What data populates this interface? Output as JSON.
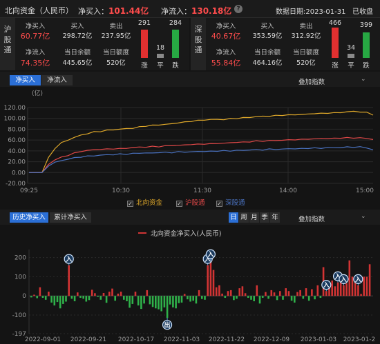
{
  "header": {
    "title": "北向资金（人民币）",
    "net_buy_label": "净买入：",
    "net_buy_value": "101.44亿",
    "net_inflow_label": "净流入：",
    "net_inflow_value": "130.18亿",
    "help": "?",
    "date_label": "数据日期:2023-01-31",
    "status": "已收盘"
  },
  "sh": {
    "tag": "沪股通",
    "net_buy_label": "净买入",
    "net_buy": "60.77亿",
    "buy_label": "买入",
    "buy": "298.72亿",
    "sell_label": "卖出",
    "sell": "237.95亿",
    "net_in_label": "净流入",
    "net_in": "74.35亿",
    "balance_label": "当日余额",
    "balance": "445.65亿",
    "quota_label": "当日额度",
    "quota": "520亿",
    "up": "291",
    "flat": "18",
    "down": "284",
    "up_label": "涨",
    "flat_label": "平",
    "down_label": "跌",
    "up_ratio": 0.49,
    "flat_ratio": 0.03,
    "down_ratio": 0.48
  },
  "sz": {
    "tag": "深股通",
    "net_buy_label": "净买入",
    "net_buy": "40.67亿",
    "buy_label": "买入",
    "buy": "353.59亿",
    "sell_label": "卖出",
    "sell": "312.92亿",
    "net_in_label": "净流入",
    "net_in": "55.84亿",
    "balance_label": "当日余额",
    "balance": "464.16亿",
    "quota_label": "当日额度",
    "quota": "520亿",
    "up": "466",
    "flat": "34",
    "down": "399",
    "up_label": "涨",
    "flat_label": "平",
    "down_label": "跌",
    "up_ratio": 0.52,
    "flat_ratio": 0.04,
    "down_ratio": 0.44
  },
  "intraday": {
    "tab_net_buy": "净买入",
    "tab_net_inflow": "净流入",
    "overlay": "叠加指数",
    "legend": [
      "北向资金",
      "沪股通",
      "深股通"
    ]
  },
  "history": {
    "tab_hist": "历史净买入",
    "tab_cum": "累计净买入",
    "periods": [
      "日",
      "周",
      "月",
      "季",
      "年"
    ],
    "overlay": "叠加指数",
    "legend": "北向资金净买入(人民币)"
  },
  "chart_data": [
    {
      "type": "line",
      "unit_label": "(亿)",
      "ylim": [
        -20,
        120
      ],
      "y_ticks": [
        "120.00",
        "100.00",
        "80.00",
        "60.00",
        "40.00",
        "20.00",
        "0.00",
        "-20.00"
      ],
      "x_ticks": [
        "09:25",
        "10:30",
        "11:30",
        "14:00",
        "15:00"
      ],
      "grid": true,
      "series": [
        {
          "name": "北向资金",
          "color": "#e0a92a",
          "values": [
            0,
            0,
            0,
            28,
            45,
            55,
            60,
            65,
            69,
            72,
            75,
            76,
            78,
            79,
            80,
            81,
            82,
            84,
            86,
            87,
            88,
            89,
            90,
            92,
            93,
            95,
            96,
            97,
            98,
            98,
            98,
            99,
            100,
            101,
            102,
            103,
            104,
            104,
            105,
            106,
            106,
            107,
            107,
            108,
            109,
            109,
            110,
            110,
            111,
            112,
            113,
            112,
            111,
            106
          ]
        },
        {
          "name": "沪股通",
          "color": "#e04848",
          "values": [
            0,
            0,
            0,
            15,
            24,
            28,
            32,
            36,
            39,
            41,
            42,
            43,
            43,
            44,
            44,
            45,
            46,
            47,
            47,
            48,
            48,
            49,
            50,
            50,
            51,
            52,
            52,
            53,
            53,
            54,
            54,
            55,
            56,
            56,
            57,
            58,
            58,
            59,
            59,
            60,
            60,
            61,
            61,
            62,
            62,
            63,
            63,
            63,
            64,
            64,
            64,
            64,
            63,
            61
          ]
        },
        {
          "name": "深股通",
          "color": "#4a72c0",
          "values": [
            0,
            0,
            0,
            12,
            19,
            22,
            25,
            27,
            29,
            30,
            31,
            32,
            33,
            33,
            34,
            34,
            35,
            36,
            36,
            36,
            37,
            37,
            37,
            38,
            38,
            38,
            39,
            39,
            39,
            40,
            40,
            40,
            41,
            41,
            42,
            42,
            42,
            43,
            43,
            43,
            44,
            44,
            44,
            45,
            45,
            45,
            46,
            46,
            46,
            47,
            47,
            47,
            46,
            42
          ]
        }
      ]
    },
    {
      "type": "bar",
      "series_name": "北向资金净买入(人民币)",
      "ylim": [
        -197,
        220
      ],
      "y_ticks": [
        "200",
        "100",
        "0",
        "-100",
        "-197"
      ],
      "x_ticks": [
        "2022-09-01",
        "2022-09-21",
        "2022-10-17",
        "2022-11-03",
        "2022-11-22",
        "2022-12-09",
        "2023-01-03",
        "2023-01-2"
      ],
      "values": [
        -8,
        6,
        -12,
        45,
        -10,
        -20,
        22,
        -35,
        -50,
        -32,
        -65,
        -42,
        -30,
        160,
        -15,
        -28,
        18,
        -10,
        -15,
        -30,
        -22,
        32,
        14,
        -5,
        -20,
        15,
        -36,
        22,
        38,
        -25,
        12,
        22,
        -20,
        -28,
        -62,
        -42,
        22,
        -50,
        -68,
        -40,
        30,
        -44,
        -58,
        -65,
        -70,
        -80,
        -60,
        -115,
        -45,
        -60,
        -65,
        -38,
        -35,
        10,
        -18,
        -30,
        -25,
        -40,
        30,
        -16,
        -20,
        160,
        185,
        135,
        45,
        55,
        12,
        -10,
        25,
        30,
        -22,
        -15,
        40,
        50,
        14,
        -10,
        -20,
        -28,
        55,
        -40,
        -10,
        20,
        -15,
        30,
        18,
        -22,
        25,
        -20,
        40,
        25,
        -25,
        -35,
        20,
        30,
        -15,
        40,
        -25,
        35,
        -18,
        55,
        -10,
        150,
        25,
        60,
        80,
        50,
        70,
        110,
        55,
        65,
        185,
        100,
        75,
        55,
        10,
        100,
        100,
        165
      ],
      "markers": [
        {
          "label": "入",
          "index": 13
        },
        {
          "label": "出",
          "index": 47
        },
        {
          "label": "入",
          "index": 61
        },
        {
          "label": "入",
          "index": 62
        },
        {
          "label": "入",
          "index": 102
        },
        {
          "label": "入",
          "index": 106
        },
        {
          "label": "入",
          "index": 108
        },
        {
          "label": "入",
          "index": 113
        }
      ]
    }
  ]
}
